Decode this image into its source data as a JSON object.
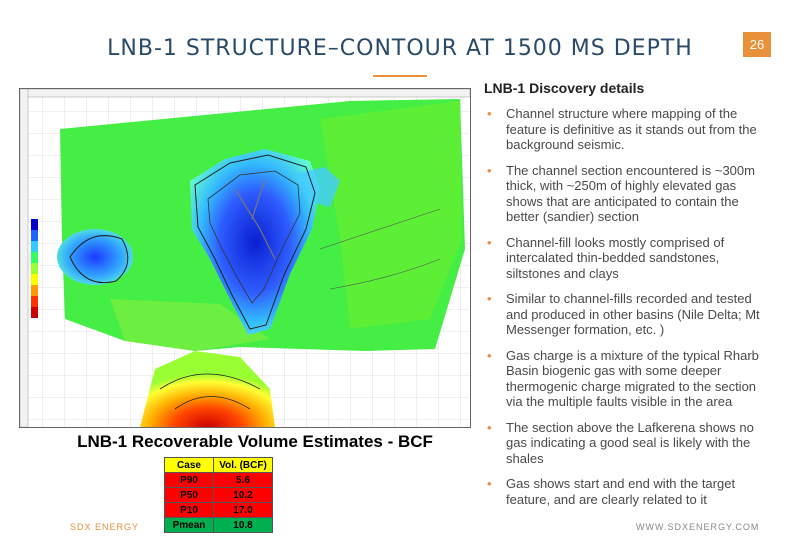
{
  "slide": {
    "page_number": "26",
    "title": "LNB-1 STRUCTURE–CONTOUR AT 1500 MS DEPTH",
    "accent_color": "#e8913a"
  },
  "map": {
    "description_icon": "contour-map-image",
    "legend_colors": [
      "#0000cc",
      "#1a66ff",
      "#33ccff",
      "#33ff66",
      "#99ff33",
      "#ffff00",
      "#ff9900",
      "#ff3300",
      "#cc0000"
    ]
  },
  "volumes": {
    "title": "LNB-1 Recoverable Volume Estimates - BCF",
    "headers": [
      "Case",
      "Vol. (BCF)"
    ],
    "rows": [
      {
        "case": "P90",
        "vol": "5.6"
      },
      {
        "case": "P50",
        "vol": "10.2"
      },
      {
        "case": "P10",
        "vol": "17.0"
      },
      {
        "case": "Pmean",
        "vol": "10.8"
      }
    ]
  },
  "details": {
    "heading": "LNB-1 Discovery details",
    "bullets": [
      "Channel structure where mapping of the feature is definitive as it stands out from the background seismic.",
      "The channel section encountered is ~300m thick, with ~250m of highly elevated gas shows that are anticipated to contain the better (sandier) section",
      "Channel-fill looks mostly comprised of intercalated thin-bedded sandstones, siltstones and clays",
      "Similar to channel-fills recorded and tested and produced in other basins (Nile Delta; Mt Messenger formation, etc. )",
      "Gas charge is a mixture of the typical Rharb Basin biogenic gas with some deeper thermogenic charge migrated to the section via the multiple faults visible in the area",
      "The section above the Lafkerena shows no gas indicating a good seal is likely with the shales",
      "Gas shows start and end with the target feature, and are clearly related to it"
    ]
  },
  "footer": {
    "left": "SDX ENERGY",
    "right": "WWW.SDXENERGY.COM"
  }
}
